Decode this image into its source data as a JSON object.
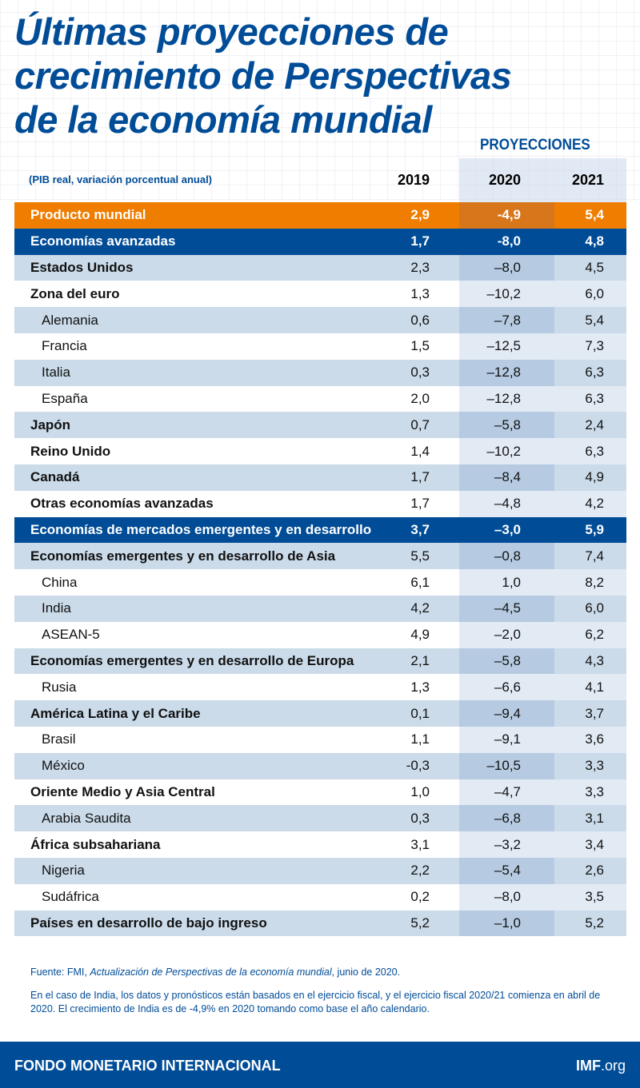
{
  "title": {
    "line1": "Últimas proyecciones de",
    "line2a": "crecimiento de ",
    "line2b": "Perspectivas",
    "line3": "de la economía mundial"
  },
  "header": {
    "projections": "PROYECCIONES",
    "unit": "(PIB real, variación porcentual anual)",
    "years": [
      "2019",
      "2020",
      "2021"
    ]
  },
  "colors": {
    "brand_blue": "#004c97",
    "orange": "#ef7d00",
    "row_alt": "#cbdbea"
  },
  "chart_data": {
    "type": "table",
    "columns": [
      "2019",
      "2020",
      "2021"
    ],
    "rows": [
      {
        "label": "Producto mundial",
        "style": "world",
        "values": [
          "2,9",
          "-4,9",
          "5,4"
        ]
      },
      {
        "label": "Economías avanzadas",
        "style": "group",
        "values": [
          "1,7",
          "-8,0",
          "4,8"
        ]
      },
      {
        "label": "Estados Unidos",
        "style": "bold",
        "values": [
          "2,3",
          "–8,0",
          "4,5"
        ]
      },
      {
        "label": "Zona del euro",
        "style": "bold",
        "values": [
          "1,3",
          "–10,2",
          "6,0"
        ]
      },
      {
        "label": "Alemania",
        "style": "sub",
        "values": [
          "0,6",
          "–7,8",
          "5,4"
        ]
      },
      {
        "label": "Francia",
        "style": "sub",
        "values": [
          "1,5",
          "–12,5",
          "7,3"
        ]
      },
      {
        "label": "Italia",
        "style": "sub",
        "values": [
          "0,3",
          "–12,8",
          "6,3"
        ]
      },
      {
        "label": "España",
        "style": "sub",
        "values": [
          "2,0",
          "–12,8",
          "6,3"
        ]
      },
      {
        "label": "Japón",
        "style": "bold",
        "values": [
          "0,7",
          "–5,8",
          "2,4"
        ]
      },
      {
        "label": "Reino Unido",
        "style": "bold",
        "values": [
          "1,4",
          "–10,2",
          "6,3"
        ]
      },
      {
        "label": "Canadá",
        "style": "bold",
        "values": [
          "1,7",
          "–8,4",
          "4,9"
        ]
      },
      {
        "label": "Otras economías avanzadas",
        "style": "bold",
        "values": [
          "1,7",
          "–4,8",
          "4,2"
        ]
      },
      {
        "label": "Economías de mercados emergentes y en desarrollo",
        "style": "group",
        "values": [
          "3,7",
          "–3,0",
          "5,9"
        ]
      },
      {
        "label": "Economías emergentes y en desarrollo de Asia",
        "style": "bold",
        "values": [
          "5,5",
          "–0,8",
          "7,4"
        ]
      },
      {
        "label": "China",
        "style": "sub",
        "values": [
          "6,1",
          "1,0",
          "8,2"
        ]
      },
      {
        "label": "India",
        "style": "sub",
        "values": [
          "4,2",
          "–4,5",
          "6,0"
        ]
      },
      {
        "label": "ASEAN-5",
        "style": "sub",
        "values": [
          "4,9",
          "–2,0",
          "6,2"
        ]
      },
      {
        "label": "Economías emergentes y en desarrollo de Europa",
        "style": "bold",
        "values": [
          "2,1",
          "–5,8",
          "4,3"
        ]
      },
      {
        "label": "Rusia",
        "style": "sub",
        "values": [
          "1,3",
          "–6,6",
          "4,1"
        ]
      },
      {
        "label": "América Latina y el Caribe",
        "style": "bold",
        "values": [
          "0,1",
          "–9,4",
          "3,7"
        ]
      },
      {
        "label": "Brasil",
        "style": "sub",
        "values": [
          "1,1",
          "–9,1",
          "3,6"
        ]
      },
      {
        "label": "México",
        "style": "sub",
        "values": [
          "-0,3",
          "–10,5",
          "3,3"
        ]
      },
      {
        "label": "Oriente Medio y Asia Central",
        "style": "bold",
        "values": [
          "1,0",
          "–4,7",
          "3,3"
        ]
      },
      {
        "label": "Arabia Saudita",
        "style": "sub",
        "values": [
          "0,3",
          "–6,8",
          "3,1"
        ]
      },
      {
        "label": "África subsahariana",
        "style": "bold",
        "values": [
          "3,1",
          "–3,2",
          "3,4"
        ]
      },
      {
        "label": "Nigeria",
        "style": "sub",
        "values": [
          "2,2",
          "–5,4",
          "2,6"
        ]
      },
      {
        "label": "Sudáfrica",
        "style": "sub",
        "values": [
          "0,2",
          "–8,0",
          "3,5"
        ]
      },
      {
        "label": "Países en desarrollo de bajo ingreso",
        "style": "bold",
        "values": [
          "5,2",
          "–1,0",
          "5,2"
        ]
      }
    ]
  },
  "notes": {
    "source_prefix": "Fuente: FMI, ",
    "source_title": "Actualización de Perspectivas de la economía mundial",
    "source_suffix": ", junio de 2020.",
    "india": "En el caso de India, los datos y pronósticos están basados en el ejercicio fiscal, y el ejercicio fiscal 2020/21 comienza en abril de 2020. El crecimiento de India es de -4,9% en 2020 tomando como base el año calendario."
  },
  "footer": {
    "org": "FONDO MONETARIO INTERNACIONAL",
    "site_bold": "IMF",
    "site_rest": ".org"
  }
}
